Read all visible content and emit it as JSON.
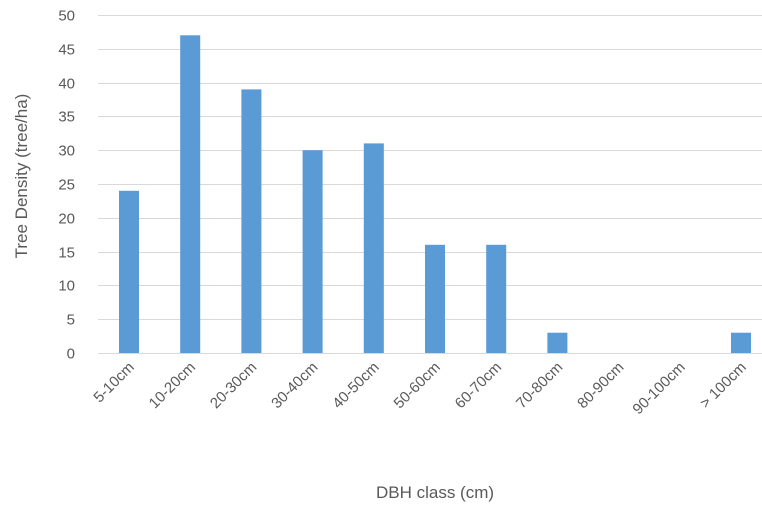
{
  "chart_data": {
    "type": "bar",
    "title": "",
    "xlabel": "DBH class (cm)",
    "ylabel": "Tree Density (tree/ha)",
    "categories": [
      "5-10cm",
      "10-20cm",
      "20-30cm",
      "30-40cm",
      "40-50cm",
      "50-60cm",
      "60-70cm",
      "70-80cm",
      "80-90cm",
      "90-100cm",
      "> 100cm"
    ],
    "values": [
      24,
      47,
      39,
      30,
      31,
      16,
      16,
      3,
      0,
      0,
      3
    ],
    "ylim": [
      0,
      50
    ],
    "yticks": [
      0,
      5,
      10,
      15,
      20,
      25,
      30,
      35,
      40,
      45,
      50
    ],
    "grid": true,
    "legend": "none",
    "colors": {
      "bar": "#5B9BD5",
      "grid": "#D9D9D9",
      "text": "#595959"
    }
  }
}
